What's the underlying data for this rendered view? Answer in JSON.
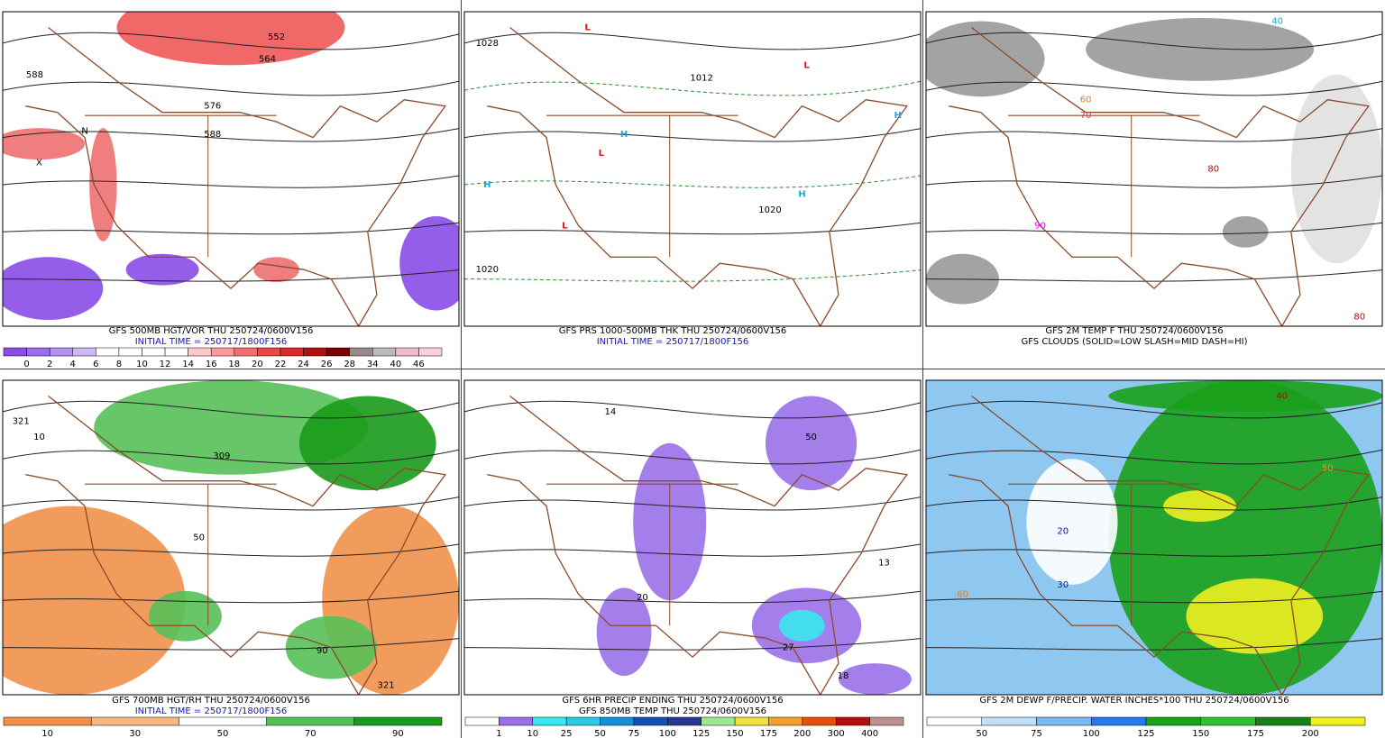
{
  "panels": [
    {
      "captions": [
        {
          "text": "GFS 500MB HGT/VOR THU 250724/0600V156",
          "color": "#000000"
        },
        {
          "text": "INITIAL TIME = 250717/1800F156",
          "color": "#1515b0"
        }
      ],
      "colorbar": {
        "mode": "edges",
        "labels": [
          "0",
          "2",
          "4",
          "6",
          "8",
          "10",
          "12",
          "14",
          "16",
          "18",
          "20",
          "22",
          "24",
          "26",
          "28",
          "34",
          "40",
          "46"
        ],
        "colors": [
          "#8a4de8",
          "#9d6bf0",
          "#b491f2",
          "#cdb8f5",
          "#ffffff",
          "#ffffff",
          "#ffffff",
          "#ffffff",
          "#ffc8c8",
          "#ff9a9a",
          "#f46e6e",
          "#e84848",
          "#d42a2a",
          "#b01010",
          "#7a0000",
          "#9a8a8a",
          "#bbbbbb",
          "#f0b8c8",
          "#f8d0dc"
        ]
      },
      "map_labels": [
        {
          "text": "588",
          "color": "#000"
        },
        {
          "text": "576",
          "color": "#000"
        },
        {
          "text": "564",
          "color": "#000"
        },
        {
          "text": "552",
          "color": "#000"
        },
        {
          "text": "588",
          "color": "#000"
        },
        {
          "text": "N",
          "color": "#000"
        },
        {
          "text": "X",
          "color": "#000"
        }
      ]
    },
    {
      "captions": [
        {
          "text": "GFS PRS 1000-500MB THK THU 250724/0600V156",
          "color": "#000000"
        },
        {
          "text": "INITIAL TIME = 250717/1800F156",
          "color": "#1515b0"
        }
      ],
      "colorbar": null,
      "map_labels": [
        {
          "text": "1028",
          "color": "#000"
        },
        {
          "text": "1012",
          "color": "#000"
        },
        {
          "text": "1020",
          "color": "#000"
        },
        {
          "text": "1020",
          "color": "#000"
        },
        {
          "text": "H",
          "color": "#19a8e0"
        },
        {
          "text": "H",
          "color": "#19a8e0"
        },
        {
          "text": "H",
          "color": "#19a8e0"
        },
        {
          "text": "H",
          "color": "#19a8e0"
        },
        {
          "text": "L",
          "color": "#e01010"
        },
        {
          "text": "L",
          "color": "#e01010"
        },
        {
          "text": "L",
          "color": "#e01010"
        },
        {
          "text": "L",
          "color": "#e01010"
        }
      ]
    },
    {
      "captions": [
        {
          "text": "GFS 2M TEMP F THU 250724/0600V156",
          "color": "#000000"
        },
        {
          "text": "GFS CLOUDS (SOLID=LOW SLASH=MID DASH=HI)",
          "color": "#000000"
        }
      ],
      "colorbar": null,
      "map_labels": [
        {
          "text": "40",
          "color": "#19a8e0"
        },
        {
          "text": "60",
          "color": "#e08020"
        },
        {
          "text": "70",
          "color": "#d04040"
        },
        {
          "text": "80",
          "color": "#a01010"
        },
        {
          "text": "90",
          "color": "#e010e0"
        },
        {
          "text": "80",
          "color": "#a01010"
        }
      ]
    },
    {
      "captions": [
        {
          "text": "GFS 700MB HGT/RH THU 250724/0600V156",
          "color": "#000000"
        },
        {
          "text": "INITIAL TIME = 250717/1800F156",
          "color": "#1515b0"
        }
      ],
      "colorbar": {
        "mode": "centers",
        "labels": [
          "10",
          "30",
          "50",
          "70",
          "90"
        ],
        "colors": [
          "#f0904a",
          "#f8b880",
          "#ffffff",
          "#56c056",
          "#1a9a1a"
        ]
      },
      "map_labels": [
        {
          "text": "321",
          "color": "#000"
        },
        {
          "text": "10",
          "color": "#000"
        },
        {
          "text": "50",
          "color": "#000"
        },
        {
          "text": "90",
          "color": "#000"
        },
        {
          "text": "309",
          "color": "#000"
        },
        {
          "text": "321",
          "color": "#000"
        }
      ]
    },
    {
      "captions": [
        {
          "text": "GFS 6HR PRECIP ENDING THU 250724/0600V156",
          "color": "#000000"
        },
        {
          "text": "GFS 850MB TEMP THU 250724/0600V156",
          "color": "#000000"
        }
      ],
      "colorbar": {
        "mode": "edges",
        "labels": [
          "1",
          "10",
          "25",
          "50",
          "75",
          "100",
          "125",
          "150",
          "175",
          "200",
          "300",
          "400"
        ],
        "colors": [
          "#ffffff",
          "#9a70e8",
          "#38e8f0",
          "#30c8e8",
          "#1890d8",
          "#1450b0",
          "#283890",
          "#a0e890",
          "#f0e040",
          "#f0a030",
          "#e05010",
          "#b01010",
          "#c09090"
        ]
      },
      "map_labels": [
        {
          "text": "14",
          "color": "#000"
        },
        {
          "text": "50",
          "color": "#000"
        },
        {
          "text": "20",
          "color": "#000"
        },
        {
          "text": "27",
          "color": "#000"
        },
        {
          "text": "13",
          "color": "#000"
        },
        {
          "text": "18",
          "color": "#000"
        }
      ]
    },
    {
      "captions": [
        {
          "text": "GFS 2M DEWP F/PRECIP. WATER INCHES*100 THU 250724/0600V156",
          "color": "#000000"
        }
      ],
      "colorbar": {
        "mode": "edges",
        "labels": [
          "50",
          "75",
          "100",
          "125",
          "150",
          "175",
          "200"
        ],
        "colors": [
          "#ffffff",
          "#bfe0f8",
          "#7ab8f0",
          "#2878e8",
          "#1aa01a",
          "#30c030",
          "#158015",
          "#f0f020"
        ]
      },
      "map_labels": [
        {
          "text": "40",
          "color": "#a01010"
        },
        {
          "text": "50",
          "color": "#e0a020"
        },
        {
          "text": "30",
          "color": "#1010c0"
        },
        {
          "text": "20",
          "color": "#1010c0"
        },
        {
          "text": "60",
          "color": "#e08020"
        }
      ]
    }
  ]
}
